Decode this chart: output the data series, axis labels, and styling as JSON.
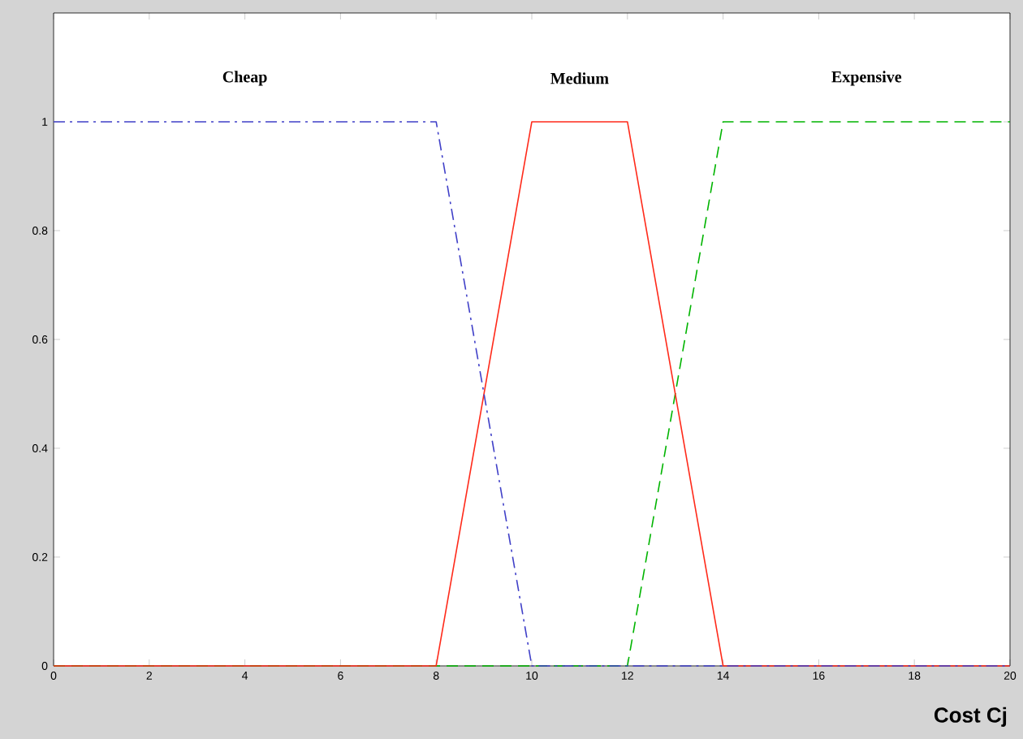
{
  "chart_data": {
    "type": "line",
    "xlabel": "Cost Cj",
    "xlim": [
      0,
      20
    ],
    "ylim": [
      0,
      1.2
    ],
    "xticks": [
      0,
      2,
      4,
      6,
      8,
      10,
      12,
      14,
      16,
      18,
      20
    ],
    "yticks": [
      0,
      0.2,
      0.4,
      0.6,
      0.8,
      1
    ],
    "grid": false,
    "legend": false,
    "series": [
      {
        "name": "Cheap",
        "color": "#4040c8",
        "line_style": "dashdot",
        "x": [
          0,
          8,
          10,
          20
        ],
        "values": [
          1,
          1,
          0,
          0
        ]
      },
      {
        "name": "Medium",
        "color": "#ff2a1a",
        "line_style": "solid",
        "x": [
          0,
          8,
          10,
          12,
          14,
          20
        ],
        "values": [
          0,
          0,
          1,
          1,
          0,
          0
        ]
      },
      {
        "name": "Expensive",
        "color": "#00b400",
        "line_style": "dashed",
        "x": [
          0,
          12,
          14,
          20
        ],
        "values": [
          0,
          0,
          1,
          1
        ]
      }
    ]
  }
}
